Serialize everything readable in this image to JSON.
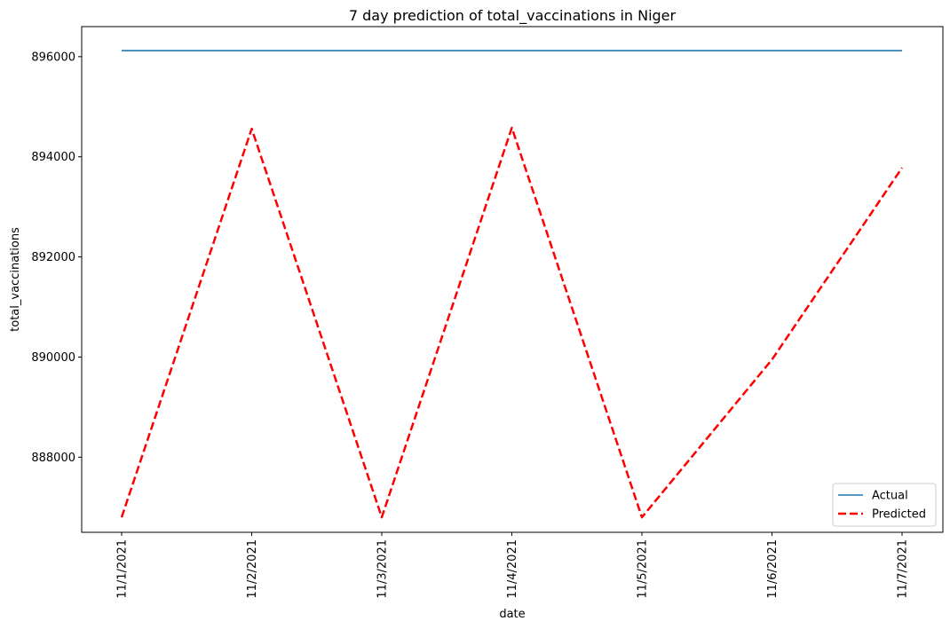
{
  "chart_data": {
    "type": "line",
    "title": "7 day prediction of total_vaccinations in Niger",
    "xlabel": "date",
    "ylabel": "total_vaccinations",
    "categories": [
      "11/1/2021",
      "11/2/2021",
      "11/3/2021",
      "11/4/2021",
      "11/5/2021",
      "11/6/2021",
      "11/7/2021"
    ],
    "ylim": [
      886500,
      896600
    ],
    "yticks": [
      888000,
      890000,
      892000,
      894000,
      896000
    ],
    "grid": false,
    "legend_position": "lower-right",
    "series": [
      {
        "name": "Actual",
        "color": "#1f77b4",
        "style": "solid",
        "values": [
          896120,
          896120,
          896120,
          896120,
          896120,
          896120,
          896120
        ]
      },
      {
        "name": "Predicted",
        "color": "#ff0000",
        "style": "dashed",
        "values": [
          886800,
          894560,
          886800,
          894580,
          886800,
          889950,
          893780
        ]
      }
    ]
  }
}
